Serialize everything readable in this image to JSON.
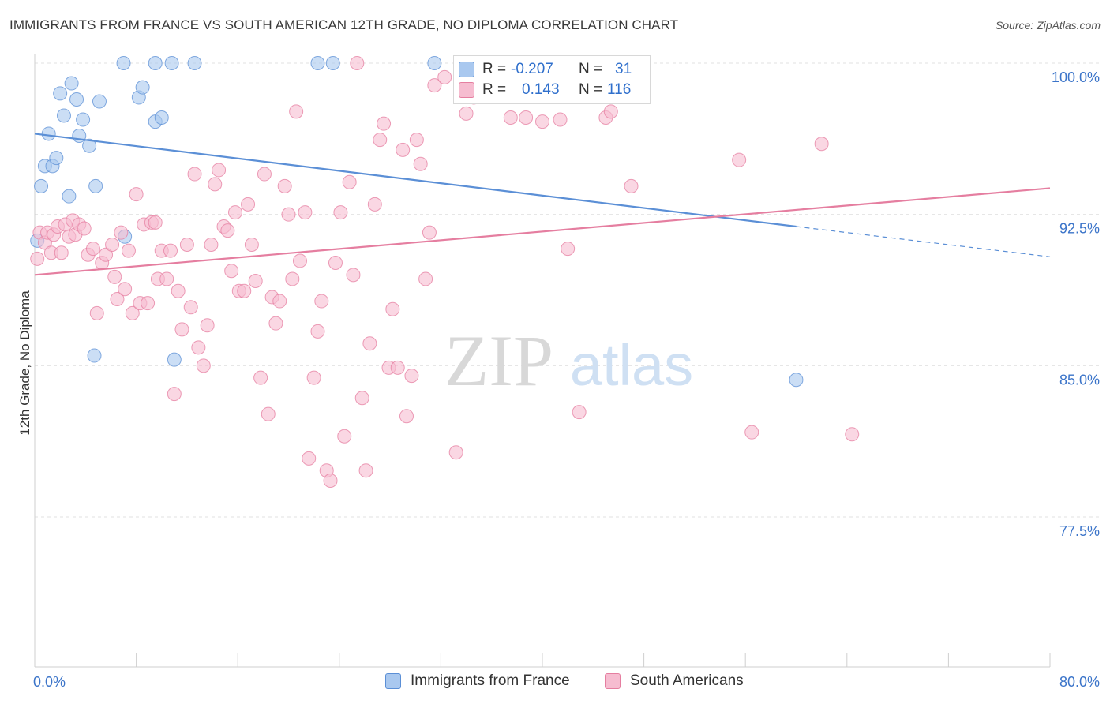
{
  "title": "IMMIGRANTS FROM FRANCE VS SOUTH AMERICAN 12TH GRADE, NO DIPLOMA CORRELATION CHART",
  "source": "Source: ZipAtlas.com",
  "watermark": {
    "zip": "ZIP",
    "atlas": "atlas"
  },
  "legend": {
    "r_label": "R =",
    "n_label": "N =",
    "series": [
      {
        "name": "Immigrants from France",
        "r": "-0.207",
        "n": "31",
        "fill": "#a9c8ef",
        "stroke": "#5b8fd6"
      },
      {
        "name": "South Americans",
        "r": "0.143",
        "n": "116",
        "fill": "#f6bcd0",
        "stroke": "#e57ea0"
      }
    ]
  },
  "chart_data": {
    "type": "scatter",
    "title": "IMMIGRANTS FROM FRANCE VS SOUTH AMERICAN 12TH GRADE, NO DIPLOMA CORRELATION CHART",
    "xlabel": "",
    "ylabel": "12th Grade, No Diploma",
    "xlim": [
      0,
      80
    ],
    "ylim": [
      70,
      101.5
    ],
    "x_tick_labels": [
      "0.0%",
      "80.0%"
    ],
    "y_ticks": [
      {
        "value": 77.5,
        "label": "77.5%"
      },
      {
        "value": 85.0,
        "label": "85.0%"
      },
      {
        "value": 92.5,
        "label": "92.5%"
      },
      {
        "value": 100.0,
        "label": "100.0%"
      }
    ],
    "grid": true,
    "series": [
      {
        "name": "Immigrants from France",
        "color": "#5b8fd6",
        "fill": "#a9c8ef",
        "trend": {
          "x": [
            0,
            60
          ],
          "y": [
            96.5,
            91.9
          ]
        },
        "trend_dashed": {
          "x": [
            60,
            80
          ],
          "y": [
            91.9,
            90.4
          ]
        },
        "points": [
          [
            0.2,
            91.2
          ],
          [
            0.5,
            93.9
          ],
          [
            0.8,
            94.9
          ],
          [
            1.1,
            96.5
          ],
          [
            1.4,
            94.9
          ],
          [
            1.7,
            95.3
          ],
          [
            2.0,
            98.5
          ],
          [
            2.3,
            97.4
          ],
          [
            2.7,
            93.4
          ],
          [
            2.9,
            99.0
          ],
          [
            3.3,
            98.2
          ],
          [
            3.5,
            96.4
          ],
          [
            3.8,
            97.2
          ],
          [
            4.3,
            95.9
          ],
          [
            4.7,
            85.5
          ],
          [
            4.8,
            93.9
          ],
          [
            5.1,
            98.1
          ],
          [
            7.0,
            100.0
          ],
          [
            7.1,
            91.4
          ],
          [
            8.2,
            98.3
          ],
          [
            8.5,
            98.8
          ],
          [
            9.5,
            100.0
          ],
          [
            9.5,
            97.1
          ],
          [
            10.0,
            97.3
          ],
          [
            10.8,
            100.0
          ],
          [
            11.0,
            85.3
          ],
          [
            12.6,
            100.0
          ],
          [
            22.3,
            100.0
          ],
          [
            23.5,
            100.0
          ],
          [
            31.5,
            100.0
          ],
          [
            60.0,
            84.3
          ]
        ]
      },
      {
        "name": "South Americans",
        "color": "#e57ea0",
        "fill": "#f6bcd0",
        "trend": {
          "x": [
            0,
            80
          ],
          "y": [
            89.5,
            93.8
          ]
        },
        "points": [
          [
            0.2,
            90.3
          ],
          [
            0.4,
            91.6
          ],
          [
            0.8,
            91.1
          ],
          [
            1.0,
            91.6
          ],
          [
            1.3,
            90.6
          ],
          [
            1.5,
            91.5
          ],
          [
            1.8,
            91.9
          ],
          [
            2.1,
            90.6
          ],
          [
            2.4,
            92.0
          ],
          [
            2.7,
            91.4
          ],
          [
            3.0,
            92.2
          ],
          [
            3.2,
            91.5
          ],
          [
            3.5,
            92.0
          ],
          [
            3.9,
            91.8
          ],
          [
            4.2,
            90.5
          ],
          [
            4.6,
            90.8
          ],
          [
            4.9,
            87.6
          ],
          [
            5.3,
            90.1
          ],
          [
            5.6,
            90.5
          ],
          [
            6.1,
            91.0
          ],
          [
            6.3,
            89.4
          ],
          [
            6.5,
            88.3
          ],
          [
            6.8,
            91.6
          ],
          [
            7.1,
            88.8
          ],
          [
            7.4,
            90.7
          ],
          [
            7.7,
            87.6
          ],
          [
            8.0,
            93.5
          ],
          [
            8.3,
            88.1
          ],
          [
            8.6,
            92.0
          ],
          [
            8.9,
            88.1
          ],
          [
            9.2,
            92.1
          ],
          [
            9.5,
            92.1
          ],
          [
            9.7,
            89.3
          ],
          [
            10.0,
            90.7
          ],
          [
            10.4,
            89.3
          ],
          [
            10.7,
            90.7
          ],
          [
            11.0,
            83.6
          ],
          [
            11.3,
            88.7
          ],
          [
            11.6,
            86.8
          ],
          [
            12.0,
            91.0
          ],
          [
            12.3,
            87.9
          ],
          [
            12.6,
            94.5
          ],
          [
            12.9,
            85.9
          ],
          [
            13.3,
            85.0
          ],
          [
            13.6,
            87.0
          ],
          [
            13.9,
            91.0
          ],
          [
            14.2,
            94.0
          ],
          [
            14.5,
            94.7
          ],
          [
            14.9,
            91.9
          ],
          [
            15.2,
            91.7
          ],
          [
            15.5,
            89.7
          ],
          [
            15.8,
            92.6
          ],
          [
            16.1,
            88.7
          ],
          [
            16.5,
            88.7
          ],
          [
            16.8,
            93.0
          ],
          [
            17.1,
            91.0
          ],
          [
            17.4,
            89.2
          ],
          [
            17.8,
            84.4
          ],
          [
            18.1,
            94.5
          ],
          [
            18.4,
            82.6
          ],
          [
            18.7,
            88.4
          ],
          [
            19.0,
            87.1
          ],
          [
            19.3,
            88.2
          ],
          [
            19.7,
            93.9
          ],
          [
            20.0,
            92.5
          ],
          [
            20.3,
            89.3
          ],
          [
            20.6,
            97.6
          ],
          [
            20.9,
            90.2
          ],
          [
            21.3,
            92.6
          ],
          [
            21.6,
            80.4
          ],
          [
            22.0,
            84.4
          ],
          [
            22.3,
            86.7
          ],
          [
            22.6,
            88.2
          ],
          [
            23.0,
            79.8
          ],
          [
            23.3,
            79.3
          ],
          [
            23.7,
            90.1
          ],
          [
            24.1,
            92.6
          ],
          [
            24.4,
            81.5
          ],
          [
            24.8,
            94.1
          ],
          [
            25.1,
            89.5
          ],
          [
            25.4,
            100.0
          ],
          [
            25.8,
            83.4
          ],
          [
            26.1,
            79.8
          ],
          [
            26.4,
            86.1
          ],
          [
            26.8,
            93.0
          ],
          [
            27.2,
            96.2
          ],
          [
            27.5,
            97.0
          ],
          [
            27.9,
            84.9
          ],
          [
            28.2,
            87.8
          ],
          [
            28.6,
            84.9
          ],
          [
            29.0,
            95.7
          ],
          [
            29.3,
            82.5
          ],
          [
            29.7,
            84.5
          ],
          [
            30.1,
            96.2
          ],
          [
            30.4,
            95.0
          ],
          [
            30.8,
            89.3
          ],
          [
            31.1,
            91.6
          ],
          [
            31.5,
            98.9
          ],
          [
            32.3,
            99.3
          ],
          [
            33.2,
            80.7
          ],
          [
            34.0,
            97.5
          ],
          [
            34.6,
            98.3
          ],
          [
            36.4,
            100.0
          ],
          [
            37.5,
            97.3
          ],
          [
            38.7,
            97.3
          ],
          [
            40.0,
            97.1
          ],
          [
            41.4,
            97.2
          ],
          [
            42.0,
            90.8
          ],
          [
            42.9,
            82.7
          ],
          [
            45.0,
            97.3
          ],
          [
            45.4,
            97.6
          ],
          [
            47.0,
            93.9
          ],
          [
            55.5,
            95.2
          ],
          [
            56.5,
            81.7
          ],
          [
            62.0,
            96.0
          ],
          [
            64.4,
            81.6
          ]
        ]
      }
    ]
  }
}
